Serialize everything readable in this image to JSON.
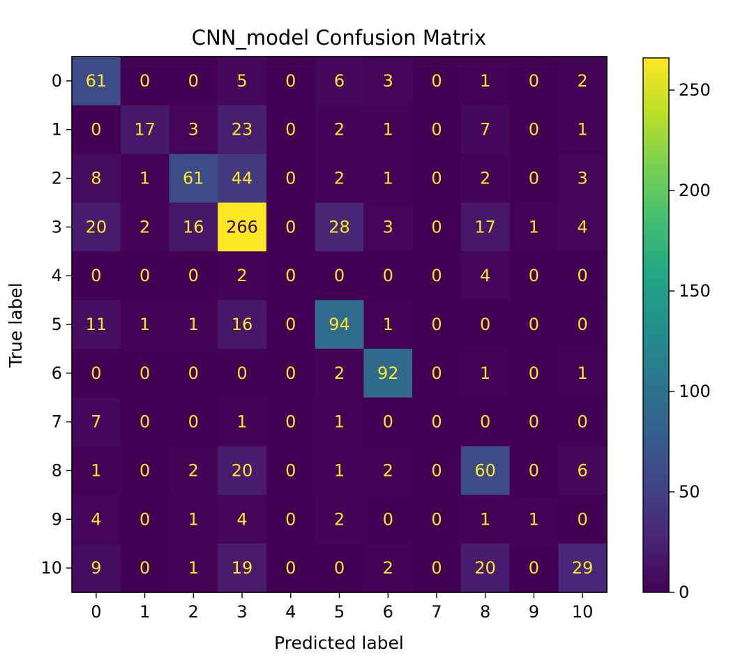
{
  "chart_data": {
    "type": "heatmap",
    "title": "CNN_model Confusion Matrix",
    "xlabel": "Predicted label",
    "ylabel": "True label",
    "x_categories": [
      "0",
      "1",
      "2",
      "3",
      "4",
      "5",
      "6",
      "7",
      "8",
      "9",
      "10"
    ],
    "y_categories": [
      "0",
      "1",
      "2",
      "3",
      "4",
      "5",
      "6",
      "7",
      "8",
      "9",
      "10"
    ],
    "values": [
      [
        61,
        0,
        0,
        5,
        0,
        6,
        3,
        0,
        1,
        0,
        2
      ],
      [
        0,
        17,
        3,
        23,
        0,
        2,
        1,
        0,
        7,
        0,
        1
      ],
      [
        8,
        1,
        61,
        44,
        0,
        2,
        1,
        0,
        2,
        0,
        3
      ],
      [
        20,
        2,
        16,
        266,
        0,
        28,
        3,
        0,
        17,
        1,
        4
      ],
      [
        0,
        0,
        0,
        2,
        0,
        0,
        0,
        0,
        4,
        0,
        0
      ],
      [
        11,
        1,
        1,
        16,
        0,
        94,
        1,
        0,
        0,
        0,
        0
      ],
      [
        0,
        0,
        0,
        0,
        0,
        2,
        92,
        0,
        1,
        0,
        1
      ],
      [
        7,
        0,
        0,
        1,
        0,
        1,
        0,
        0,
        0,
        0,
        0
      ],
      [
        1,
        0,
        2,
        20,
        0,
        1,
        2,
        0,
        60,
        0,
        6
      ],
      [
        4,
        0,
        1,
        4,
        0,
        2,
        0,
        0,
        1,
        1,
        0
      ],
      [
        9,
        0,
        1,
        19,
        0,
        0,
        2,
        0,
        20,
        0,
        29
      ]
    ],
    "colormap": "viridis",
    "vmin": 0,
    "vmax": 266,
    "colorbar_ticks": [
      0,
      50,
      100,
      150,
      200,
      250
    ],
    "text_color_light": "#fde725",
    "text_color_dark": "#440154",
    "grid": false
  }
}
